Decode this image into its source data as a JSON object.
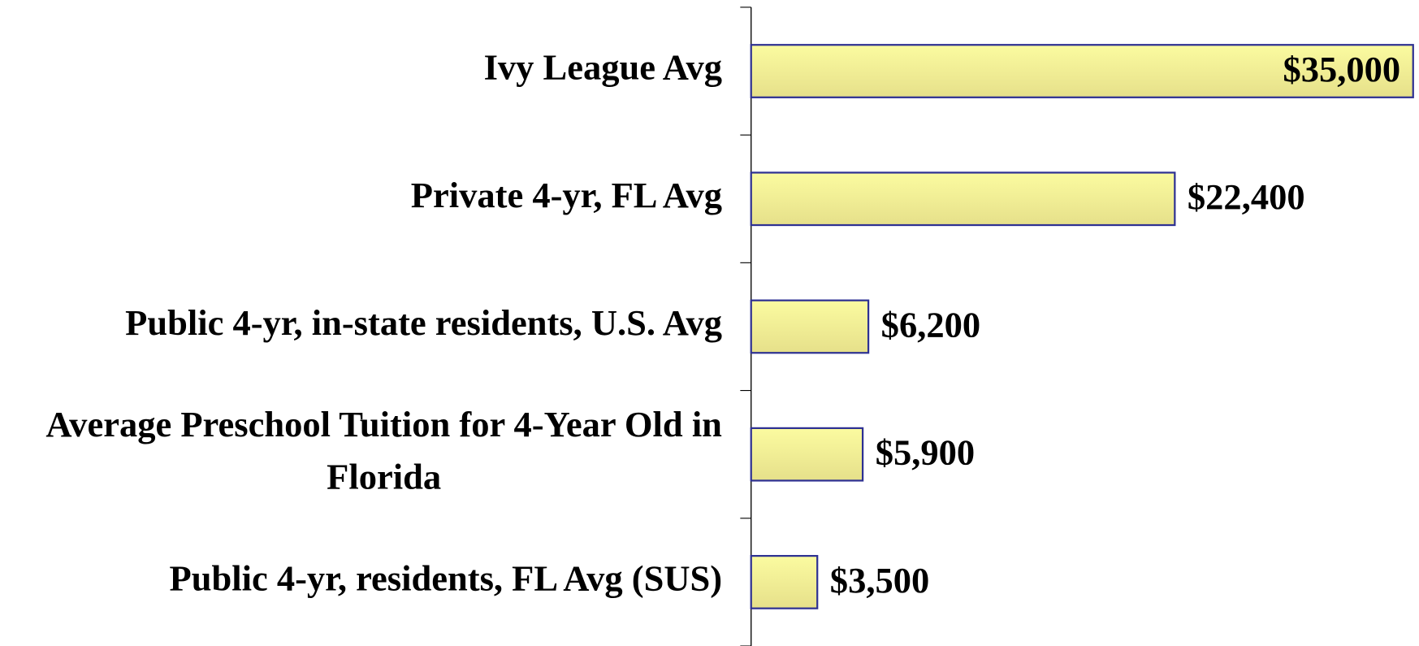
{
  "chart_data": {
    "type": "bar",
    "orientation": "horizontal",
    "categories": [
      "Ivy League Avg",
      "Private 4-yr, FL Avg",
      "Public 4-yr, in-state residents, U.S. Avg",
      "Average Preschool Tuition for 4-Year Old in Florida",
      "Public 4-yr, residents, FL Avg (SUS)"
    ],
    "values": [
      35000,
      22400,
      6200,
      5900,
      3500
    ],
    "value_labels": [
      "$35,000",
      "$22,400",
      "$6,200",
      "$5,900",
      "$3,500"
    ],
    "color": "#f3ef8f",
    "edge_color": "#2e3192"
  }
}
